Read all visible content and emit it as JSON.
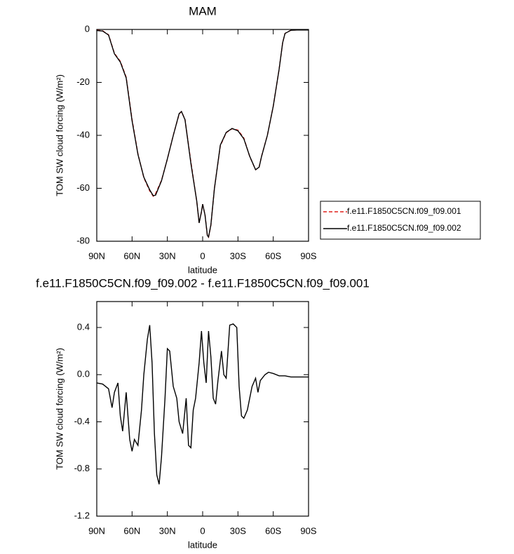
{
  "chart_data": [
    {
      "type": "line",
      "title": "MAM",
      "x_label": "latitude",
      "y_label": "TOM SW cloud forcing (W/m²)",
      "x": [
        90,
        85,
        80,
        75,
        70,
        65,
        60,
        55,
        50,
        45,
        42,
        40,
        35,
        30,
        25,
        20,
        18,
        15,
        10,
        5,
        3,
        1,
        0,
        -2,
        -4,
        -5,
        -7,
        -10,
        -15,
        -20,
        -25,
        -30,
        -35,
        -40,
        -45,
        -48,
        -50,
        -55,
        -60,
        -65,
        -68,
        -70,
        -75,
        -80,
        -90
      ],
      "series": [
        {
          "name": "f.e11.F1850C5CN.f09_f09.001",
          "color": "#e0201b",
          "dash": true,
          "values": [
            -0.3,
            -0.5,
            -2,
            -9,
            -12,
            -18,
            -34,
            -47,
            -56,
            -61,
            -63,
            -62,
            -57,
            -49,
            -40,
            -32,
            -31,
            -34,
            -50,
            -65,
            -73,
            -69,
            -66,
            -70,
            -78,
            -78.5,
            -74,
            -60,
            -44,
            -39,
            -37.5,
            -38,
            -41,
            -48,
            -53,
            -52,
            -48,
            -40,
            -29,
            -15,
            -5,
            -1.5,
            -0.3,
            -0.2,
            -0.2
          ]
        },
        {
          "name": "f.e11.F1850C5CN.f09_f09.002",
          "color": "#000000",
          "dash": false,
          "values": [
            -0.4,
            -0.6,
            -2.1,
            -9.2,
            -12.3,
            -18.3,
            -34.5,
            -47.2,
            -55.8,
            -60.6,
            -62.8,
            -62.6,
            -57.2,
            -48.9,
            -40.1,
            -31.8,
            -31.0,
            -34.1,
            -50.6,
            -64.9,
            -73.1,
            -68.8,
            -66.0,
            -70.1,
            -77.8,
            -78.4,
            -73.8,
            -60.1,
            -43.7,
            -38.9,
            -37.4,
            -38.3,
            -41.3,
            -47.9,
            -53.0,
            -52.0,
            -48.1,
            -40.0,
            -29.0,
            -15.0,
            -5.0,
            -1.5,
            -0.3,
            -0.2,
            -0.2
          ]
        }
      ],
      "xlim": [
        90,
        -90
      ],
      "xticks": [
        {
          "value": 90,
          "label": "90N"
        },
        {
          "value": 60,
          "label": "60N"
        },
        {
          "value": 30,
          "label": "30N"
        },
        0,
        {
          "value": -30,
          "label": "30S"
        },
        {
          "value": -60,
          "label": "60S"
        },
        {
          "value": -90,
          "label": "90S"
        }
      ],
      "ylim": [
        -80,
        0
      ],
      "yticks": [
        0,
        -20,
        -40,
        -60,
        -80
      ],
      "legend": "right"
    },
    {
      "type": "line",
      "title": "f.e11.F1850C5CN.f09_f09.002 - f.e11.F1850C5CN.f09_f09.001",
      "x_label": "latitude",
      "y_label": "TOM SW cloud forcing (W/m²)",
      "x": [
        90,
        85,
        80,
        77,
        75,
        72,
        70,
        68,
        65,
        62,
        60,
        58,
        55,
        52,
        50,
        47,
        45,
        43,
        41,
        39,
        37,
        35,
        32,
        30,
        28,
        25,
        22,
        20,
        17,
        14,
        12,
        10,
        8,
        6,
        3,
        1,
        -1,
        -3,
        -5,
        -7,
        -9,
        -11,
        -13,
        -16,
        -18,
        -20,
        -23,
        -26,
        -29,
        -31,
        -33,
        -35,
        -38,
        -42,
        -45,
        -47,
        -49,
        -53,
        -56,
        -60,
        -65,
        -70,
        -75,
        -80,
        -90
      ],
      "series": [
        {
          "name": "f.e11.F1850C5CN.f09_f09.002 - f.e11.F1850C5CN.f09_f09.001",
          "color": "#000000",
          "dash": false,
          "values": [
            -0.07,
            -0.08,
            -0.12,
            -0.28,
            -0.15,
            -0.07,
            -0.35,
            -0.48,
            -0.15,
            -0.55,
            -0.65,
            -0.55,
            -0.6,
            -0.3,
            0.0,
            0.3,
            0.42,
            0.1,
            -0.5,
            -0.85,
            -0.93,
            -0.7,
            -0.2,
            0.22,
            0.2,
            -0.1,
            -0.2,
            -0.4,
            -0.5,
            -0.2,
            -0.6,
            -0.62,
            -0.3,
            -0.2,
            0.1,
            0.37,
            0.1,
            -0.07,
            0.37,
            0.15,
            -0.2,
            -0.25,
            -0.05,
            0.2,
            0.0,
            -0.03,
            0.42,
            0.43,
            0.4,
            -0.1,
            -0.35,
            -0.37,
            -0.3,
            -0.1,
            -0.03,
            -0.15,
            -0.05,
            0.0,
            0.02,
            0.01,
            -0.01,
            -0.01,
            -0.02,
            -0.02,
            -0.02
          ]
        }
      ],
      "xlim": [
        90,
        -90
      ],
      "xticks": [
        {
          "value": 90,
          "label": "90N"
        },
        {
          "value": 60,
          "label": "60N"
        },
        {
          "value": 30,
          "label": "30N"
        },
        0,
        {
          "value": -30,
          "label": "30S"
        },
        {
          "value": -60,
          "label": "60S"
        },
        {
          "value": -90,
          "label": "90S"
        }
      ],
      "ylim": [
        -1.2,
        0.62
      ],
      "yticks": [
        0.4,
        {
          "value": 0,
          "label": "0.0"
        },
        -0.4,
        -0.8,
        -1.2
      ]
    }
  ]
}
